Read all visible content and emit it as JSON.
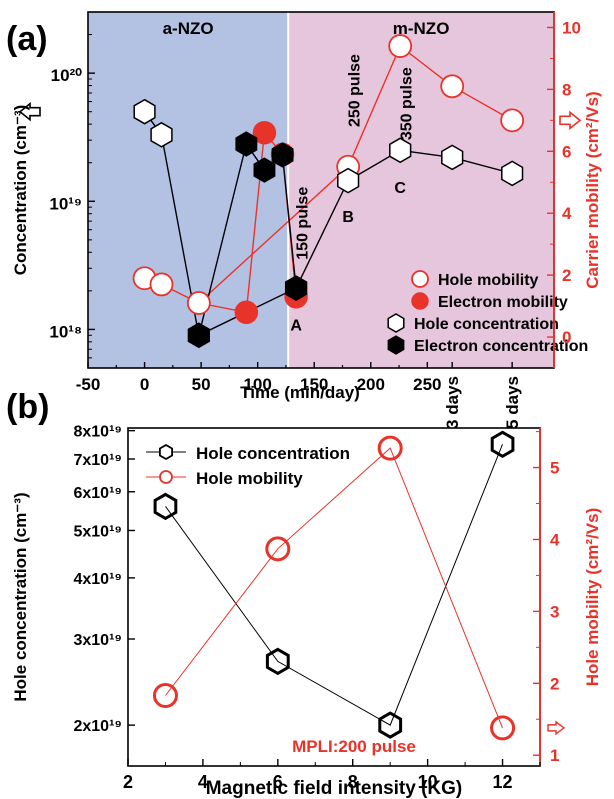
{
  "colors": {
    "red": "#e8332a",
    "black": "#000000",
    "amorphous_region": "#b3c2e3",
    "magnetic_region": "#e6c6dd"
  },
  "chart_data": [
    {
      "panel_label": "(a)",
      "type": "scatter",
      "xlabel": "Time (min/day)",
      "ylabel_left": "Concentration (cm⁻³)",
      "ylabel_right": "Carrier mobility (cm²/Vs)",
      "x_ticks": [
        "-50",
        "0",
        "50",
        "100",
        "150",
        "200",
        "250",
        "3 days",
        "5 days"
      ],
      "xlim": [
        -50,
        362
      ],
      "ylim_left_log": [
        5e+17,
        3e+20
      ],
      "y_ticks_left": [
        "10¹⁸",
        "10¹⁹",
        "10²⁰"
      ],
      "ylim_right": [
        -1,
        10.5
      ],
      "y_ticks_right": [
        "0",
        "2",
        "4",
        "6",
        "8",
        "10"
      ],
      "regions": [
        {
          "label": "a-NZO",
          "x_start": -50,
          "x_end": 127
        },
        {
          "label": "m-NZO",
          "x_start": 127,
          "x_end": 362
        }
      ],
      "point_labels": [
        {
          "text": "A",
          "x": 134,
          "y_left": 1.35e+18
        },
        {
          "text": "B",
          "x": 180,
          "y_left": 9.5e+18
        },
        {
          "text": "C",
          "x": 226,
          "y_left": 1.6e+19
        }
      ],
      "annotations": [
        {
          "text": "150 pulse",
          "x": 144,
          "y_left": 3.5e+18
        },
        {
          "text": "250 pulse",
          "x": 190,
          "y_left": 3.8e+19
        },
        {
          "text": "350 pulse",
          "x": 236,
          "y_left": 3e+19
        }
      ],
      "series": [
        {
          "name": "Hole mobility",
          "axis": "right",
          "marker": "circle-open",
          "x": [
            0,
            15,
            48,
            180,
            226,
            272,
            325
          ],
          "y": [
            1.9,
            1.7,
            1.1,
            5.5,
            9.4,
            8.1,
            7.0
          ]
        },
        {
          "name": "Electron mobility",
          "axis": "right",
          "marker": "circle-filled",
          "x": [
            48,
            90,
            106,
            122,
            134
          ],
          "y": [
            1.1,
            0.8,
            6.6,
            5.9,
            1.3
          ]
        },
        {
          "name": "Hole concentration",
          "axis": "left",
          "marker": "hexagon-open",
          "x": [
            0,
            15,
            48,
            134,
            180,
            226,
            272,
            325
          ],
          "y": [
            5e+19,
            3.3e+19,
            9e+17,
            2.1e+18,
            1.45e+19,
            2.5e+19,
            2.2e+19,
            1.65e+19
          ]
        },
        {
          "name": "Electron concentration",
          "axis": "left",
          "marker": "hexagon-filled",
          "x": [
            48,
            90,
            106,
            122,
            134
          ],
          "y": [
            9e+17,
            2.8e+19,
            1.75e+19,
            2.3e+19,
            2.1e+18
          ]
        }
      ]
    },
    {
      "panel_label": "(b)",
      "type": "line",
      "xlabel": "Magnetic field intensity (KG)",
      "ylabel_left": "Hole concentration (cm⁻³)",
      "ylabel_right": "Hole mobility (cm²/Vs)",
      "xlim": [
        2,
        13
      ],
      "x_ticks": [
        2,
        4,
        6,
        8,
        10,
        12
      ],
      "ylim_left_log": [
        1.65e+19,
        8.1e+19
      ],
      "y_ticks_left": [
        {
          "label": "2x10¹⁹",
          "value": 2e+19
        },
        {
          "label": "3x10¹⁹",
          "value": 3e+19
        },
        {
          "label": "4x10¹⁹",
          "value": 4e+19
        },
        {
          "label": "5x10¹⁹",
          "value": 5e+19
        },
        {
          "label": "6x10¹⁹",
          "value": 6e+19
        },
        {
          "label": "7x10¹⁹",
          "value": 7e+19
        },
        {
          "label": "8x10¹⁹",
          "value": 8e+19
        }
      ],
      "ylim_right": [
        0.85,
        5.55
      ],
      "y_ticks_right": [
        1,
        2,
        3,
        4,
        5
      ],
      "annotation": "MPLI:200 pulse",
      "legend_position": "top-left",
      "series": [
        {
          "name": "Hole concentration",
          "axis": "left",
          "marker": "hexagon-open",
          "x": [
            3,
            6,
            9,
            12
          ],
          "y": [
            5.6e+19,
            2.7e+19,
            2e+19,
            7.5e+19
          ]
        },
        {
          "name": "Hole mobility",
          "axis": "right",
          "marker": "circle-open",
          "x": [
            3,
            6,
            9,
            12
          ],
          "y": [
            1.83,
            3.87,
            5.27,
            1.38
          ]
        }
      ]
    }
  ]
}
